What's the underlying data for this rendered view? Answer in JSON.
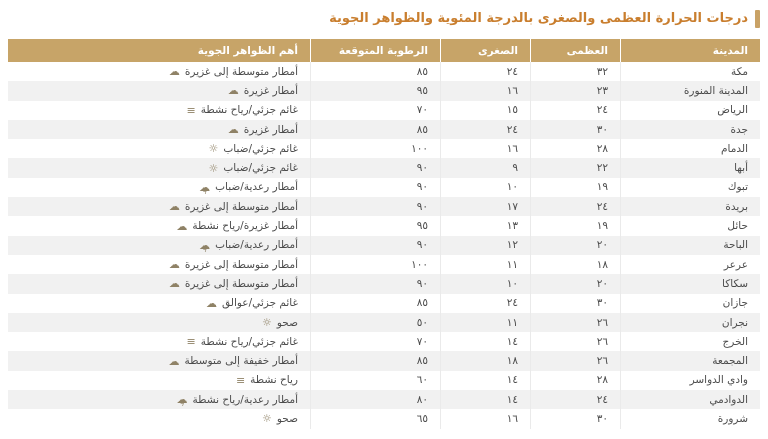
{
  "title": "درجات الحرارة العظمى والصغرى بالدرجة المئوية والظواهر الجوية",
  "colors": {
    "header_background": "#c7a468",
    "title_text": "#c97e2e",
    "title_bar": "#c9a266",
    "row_alternate": "#f1f1f1",
    "body_text": "#4b4b4b"
  },
  "table": {
    "headers": {
      "city": "المدينة",
      "max": "العظمى",
      "min": "الصغرى",
      "humidity": "الرطوبة المتوقعة",
      "phenomena": "أهم الظواهر الجوية"
    },
    "rows": [
      {
        "city": "مكة",
        "max": "٣٢",
        "min": "٢٤",
        "humidity": "٨٥",
        "phenomena": "أمطار متوسطة إلى غزيرة",
        "icon": "rain-cloud-icon"
      },
      {
        "city": "المدينة المنورة",
        "max": "٢٣",
        "min": "١٦",
        "humidity": "٩٥",
        "phenomena": "أمطار غزيرة",
        "icon": "rain-cloud-icon"
      },
      {
        "city": "الرياض",
        "max": "٢٤",
        "min": "١٥",
        "humidity": "٧٠",
        "phenomena": "غائم جزئي/رياح نشطة",
        "icon": "wind-icon"
      },
      {
        "city": "جدة",
        "max": "٣٠",
        "min": "٢٤",
        "humidity": "٨٥",
        "phenomena": "أمطار غزيرة",
        "icon": "rain-cloud-icon"
      },
      {
        "city": "الدمام",
        "max": "٢٨",
        "min": "١٦",
        "humidity": "١٠٠",
        "phenomena": "غائم جزئي/ضباب",
        "icon": "sun-icon"
      },
      {
        "city": "أبها",
        "max": "٢٢",
        "min": "٩",
        "humidity": "٩٠",
        "phenomena": "غائم جزئي/ضباب",
        "icon": "sun-icon"
      },
      {
        "city": "تبوك",
        "max": "١٩",
        "min": "١٠",
        "humidity": "٩٠",
        "phenomena": "أمطار رعدية/ضباب",
        "icon": "thunder-cloud-icon"
      },
      {
        "city": "بريدة",
        "max": "٢٤",
        "min": "١٧",
        "humidity": "٩٠",
        "phenomena": "أمطار متوسطة إلى غزيرة",
        "icon": "rain-cloud-icon"
      },
      {
        "city": "حائل",
        "max": "١٩",
        "min": "١٣",
        "humidity": "٩٥",
        "phenomena": "أمطار غزيرة/رياح نشطة",
        "icon": "rain-cloud-icon"
      },
      {
        "city": "الباحة",
        "max": "٢٠",
        "min": "١٢",
        "humidity": "٩٠",
        "phenomena": "أمطار رعدية/ضباب",
        "icon": "thunder-cloud-icon"
      },
      {
        "city": "عرعر",
        "max": "١٨",
        "min": "١١",
        "humidity": "١٠٠",
        "phenomena": "أمطار متوسطة إلى غزيرة",
        "icon": "rain-cloud-icon"
      },
      {
        "city": "سكاكا",
        "max": "٢٠",
        "min": "١٠",
        "humidity": "٩٠",
        "phenomena": "أمطار متوسطة إلى غزيرة",
        "icon": "rain-cloud-icon"
      },
      {
        "city": "جازان",
        "max": "٣٠",
        "min": "٢٤",
        "humidity": "٨٥",
        "phenomena": "غائم جزئي/عوالق",
        "icon": "dust-cloud-icon"
      },
      {
        "city": "نجران",
        "max": "٢٦",
        "min": "١١",
        "humidity": "٥٠",
        "phenomena": "صحو",
        "icon": "sun-icon"
      },
      {
        "city": "الخرج",
        "max": "٢٦",
        "min": "١٤",
        "humidity": "٧٠",
        "phenomena": "غائم جزئي/رياح نشطة",
        "icon": "wind-icon"
      },
      {
        "city": "المجمعة",
        "max": "٢٦",
        "min": "١٨",
        "humidity": "٨٥",
        "phenomena": "أمطار خفيفة إلى متوسطة",
        "icon": "rain-cloud-icon"
      },
      {
        "city": "وادي الدواسر",
        "max": "٢٨",
        "min": "١٤",
        "humidity": "٦٠",
        "phenomena": "رياح نشطة",
        "icon": "wind-icon"
      },
      {
        "city": "الدوادمي",
        "max": "٢٤",
        "min": "١٤",
        "humidity": "٨٠",
        "phenomena": "أمطار رعدية/رياح نشطة",
        "icon": "thunder-cloud-icon"
      },
      {
        "city": "شرورة",
        "max": "٣٠",
        "min": "١٦",
        "humidity": "٦٥",
        "phenomena": "صحو",
        "icon": "sun-icon"
      }
    ]
  }
}
